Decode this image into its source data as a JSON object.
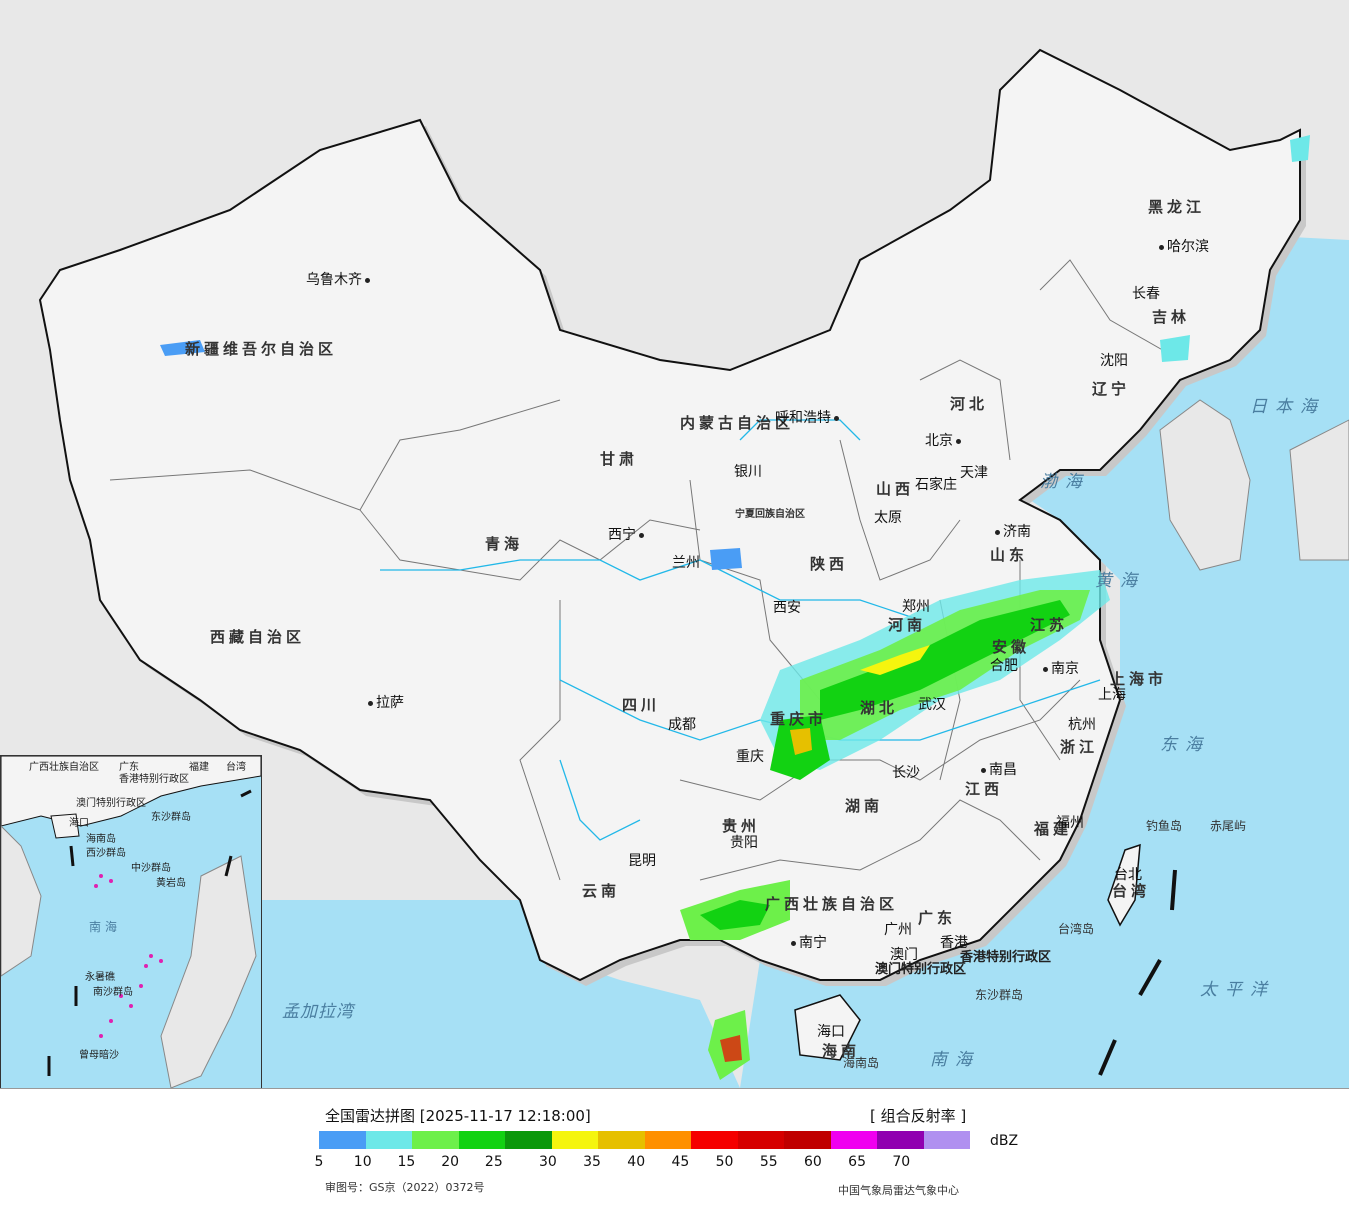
{
  "provinces": [
    {
      "name": "新疆维吾尔自治区"
    },
    {
      "name": "西藏自治区"
    },
    {
      "name": "青海"
    },
    {
      "name": "甘肃"
    },
    {
      "name": "内蒙古自治区"
    },
    {
      "name": "黑龙江"
    },
    {
      "name": "吉林"
    },
    {
      "name": "辽宁"
    },
    {
      "name": "河北"
    },
    {
      "name": "山西"
    },
    {
      "name": "陕西"
    },
    {
      "name": "四川"
    },
    {
      "name": "云南"
    },
    {
      "name": "贵州"
    },
    {
      "name": "湖南"
    },
    {
      "name": "湖北"
    },
    {
      "name": "河南"
    },
    {
      "name": "山东"
    },
    {
      "name": "江苏"
    },
    {
      "name": "安徽"
    },
    {
      "name": "浙江"
    },
    {
      "name": "江西"
    },
    {
      "name": "福建"
    },
    {
      "name": "广东"
    },
    {
      "name": "广西壮族自治区"
    },
    {
      "name": "海南"
    },
    {
      "name": "台湾"
    },
    {
      "name": "重庆市"
    },
    {
      "name": "上海市"
    },
    {
      "name": "宁夏回族自治区"
    }
  ],
  "cities": [
    "乌鲁木齐",
    "哈尔滨",
    "长春",
    "沈阳",
    "呼和浩特",
    "北京",
    "天津",
    "石家庄",
    "太原",
    "济南",
    "银川",
    "西宁",
    "兰州",
    "西安",
    "郑州",
    "合肥",
    "南京",
    "上海",
    "杭州",
    "武汉",
    "长沙",
    "南昌",
    "福州",
    "台北",
    "成都",
    "重庆",
    "贵阳",
    "昆明",
    "南宁",
    "广州",
    "澳门",
    "香港",
    "海口",
    "拉萨"
  ],
  "seas": [
    "日本海",
    "渤海",
    "黄海",
    "东海",
    "太平洋",
    "南海",
    "孟加拉湾"
  ],
  "islands": [
    "钓鱼岛",
    "赤尾屿",
    "台湾岛",
    "东沙群岛",
    "海南岛"
  ],
  "special_regions": [
    "香港特别行政区",
    "澳门特别行政区"
  ],
  "inset_labels": [
    "广西壮族自治区",
    "广东",
    "福建",
    "台湾",
    "香港特别行政区",
    "澳门特别行政区",
    "东沙群岛",
    "海口",
    "海南岛",
    "西沙群岛",
    "中沙群岛",
    "黄岩岛",
    "南海",
    "永暑礁",
    "南沙群岛",
    "曾母暗沙"
  ],
  "legend": {
    "title": "全国雷达拼图 [2025-11-17 12:18:00]",
    "product": "[ 组合反射率 ]",
    "unit": "dBZ",
    "ticks": [
      "5",
      "10",
      "15",
      "20",
      "25",
      "30",
      "35",
      "40",
      "45",
      "50",
      "55",
      "60",
      "65",
      "70"
    ],
    "colors": [
      "#4a9df5",
      "#6de8e8",
      "#6df04a",
      "#12d212",
      "#0b980b",
      "#f5f50e",
      "#e6c000",
      "#ff9000",
      "#f50000",
      "#d60000",
      "#c00000",
      "#f000f0",
      "#9000b0",
      "#b090f0"
    ],
    "review_no": "审图号：GS京（2022）0372号",
    "source": "中国气象局雷达气象中心"
  }
}
